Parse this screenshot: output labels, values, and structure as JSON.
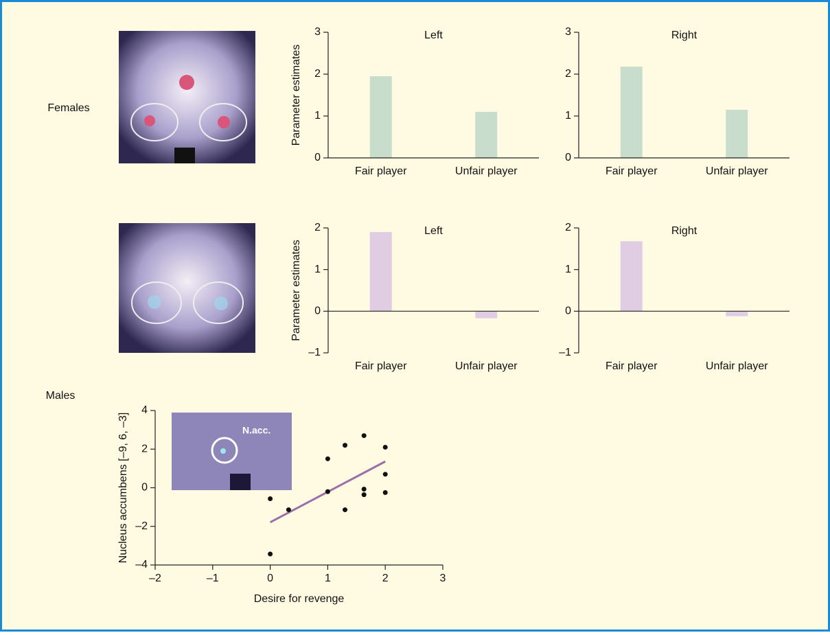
{
  "labels": {
    "females": "Females",
    "males": "Males"
  },
  "chart_data": [
    {
      "type": "bar",
      "title": "Left",
      "ylabel": "Parameter estimates",
      "categories": [
        "Fair player",
        "Unfair player"
      ],
      "values": [
        1.95,
        1.1
      ],
      "color": "#c9ddcd",
      "ylim": [
        0,
        3
      ],
      "yticks": [
        0,
        1,
        2,
        3
      ]
    },
    {
      "type": "bar",
      "title": "Right",
      "categories": [
        "Fair player",
        "Unfair player"
      ],
      "values": [
        2.18,
        1.15
      ],
      "color": "#c9ddcd",
      "ylim": [
        0,
        3
      ],
      "yticks": [
        0,
        1,
        2,
        3
      ]
    },
    {
      "type": "bar",
      "title": "Left",
      "ylabel": "Parameter estimates",
      "categories": [
        "Fair player",
        "Unfair player"
      ],
      "values": [
        1.9,
        -0.17
      ],
      "color": "#e0cde3",
      "ylim": [
        -1,
        2
      ],
      "yticks": [
        {
          "value": -1,
          "label": "–1"
        },
        0,
        1,
        2
      ]
    },
    {
      "type": "bar",
      "title": "Right",
      "categories": [
        "Fair player",
        "Unfair player"
      ],
      "values": [
        1.68,
        -0.12
      ],
      "color": "#e0cde3",
      "ylim": [
        -1,
        2
      ],
      "yticks": [
        {
          "value": -1,
          "label": "–1"
        },
        0,
        1,
        2
      ]
    },
    {
      "type": "scatter",
      "xlabel": "Desire for revenge",
      "ylabel": "Nucleus accumbens [–9, 6, –3]",
      "annotation": "N.acc.",
      "x": [
        0,
        0,
        0.32,
        1,
        1,
        1.3,
        1.3,
        1.63,
        1.63,
        1.63,
        2,
        2,
        2
      ],
      "values": [
        -0.57,
        -3.43,
        -1.14,
        -0.2,
        1.5,
        2.2,
        -1.14,
        2.7,
        -0.07,
        -0.36,
        2.1,
        0.7,
        -0.25
      ],
      "color": "#111111",
      "fit": {
        "x": [
          0,
          2
        ],
        "values": [
          -1.79,
          1.36
        ],
        "color": "#9b6fa8"
      },
      "xlim": [
        -2,
        3
      ],
      "ylim": [
        -4,
        4
      ],
      "xticks": [
        {
          "value": -2,
          "label": "–2"
        },
        {
          "value": -1,
          "label": "–1"
        },
        0,
        1,
        2,
        3
      ],
      "yticks": [
        {
          "value": -4,
          "label": "–4"
        },
        {
          "value": -2,
          "label": "–2"
        },
        0,
        2,
        4
      ]
    }
  ]
}
